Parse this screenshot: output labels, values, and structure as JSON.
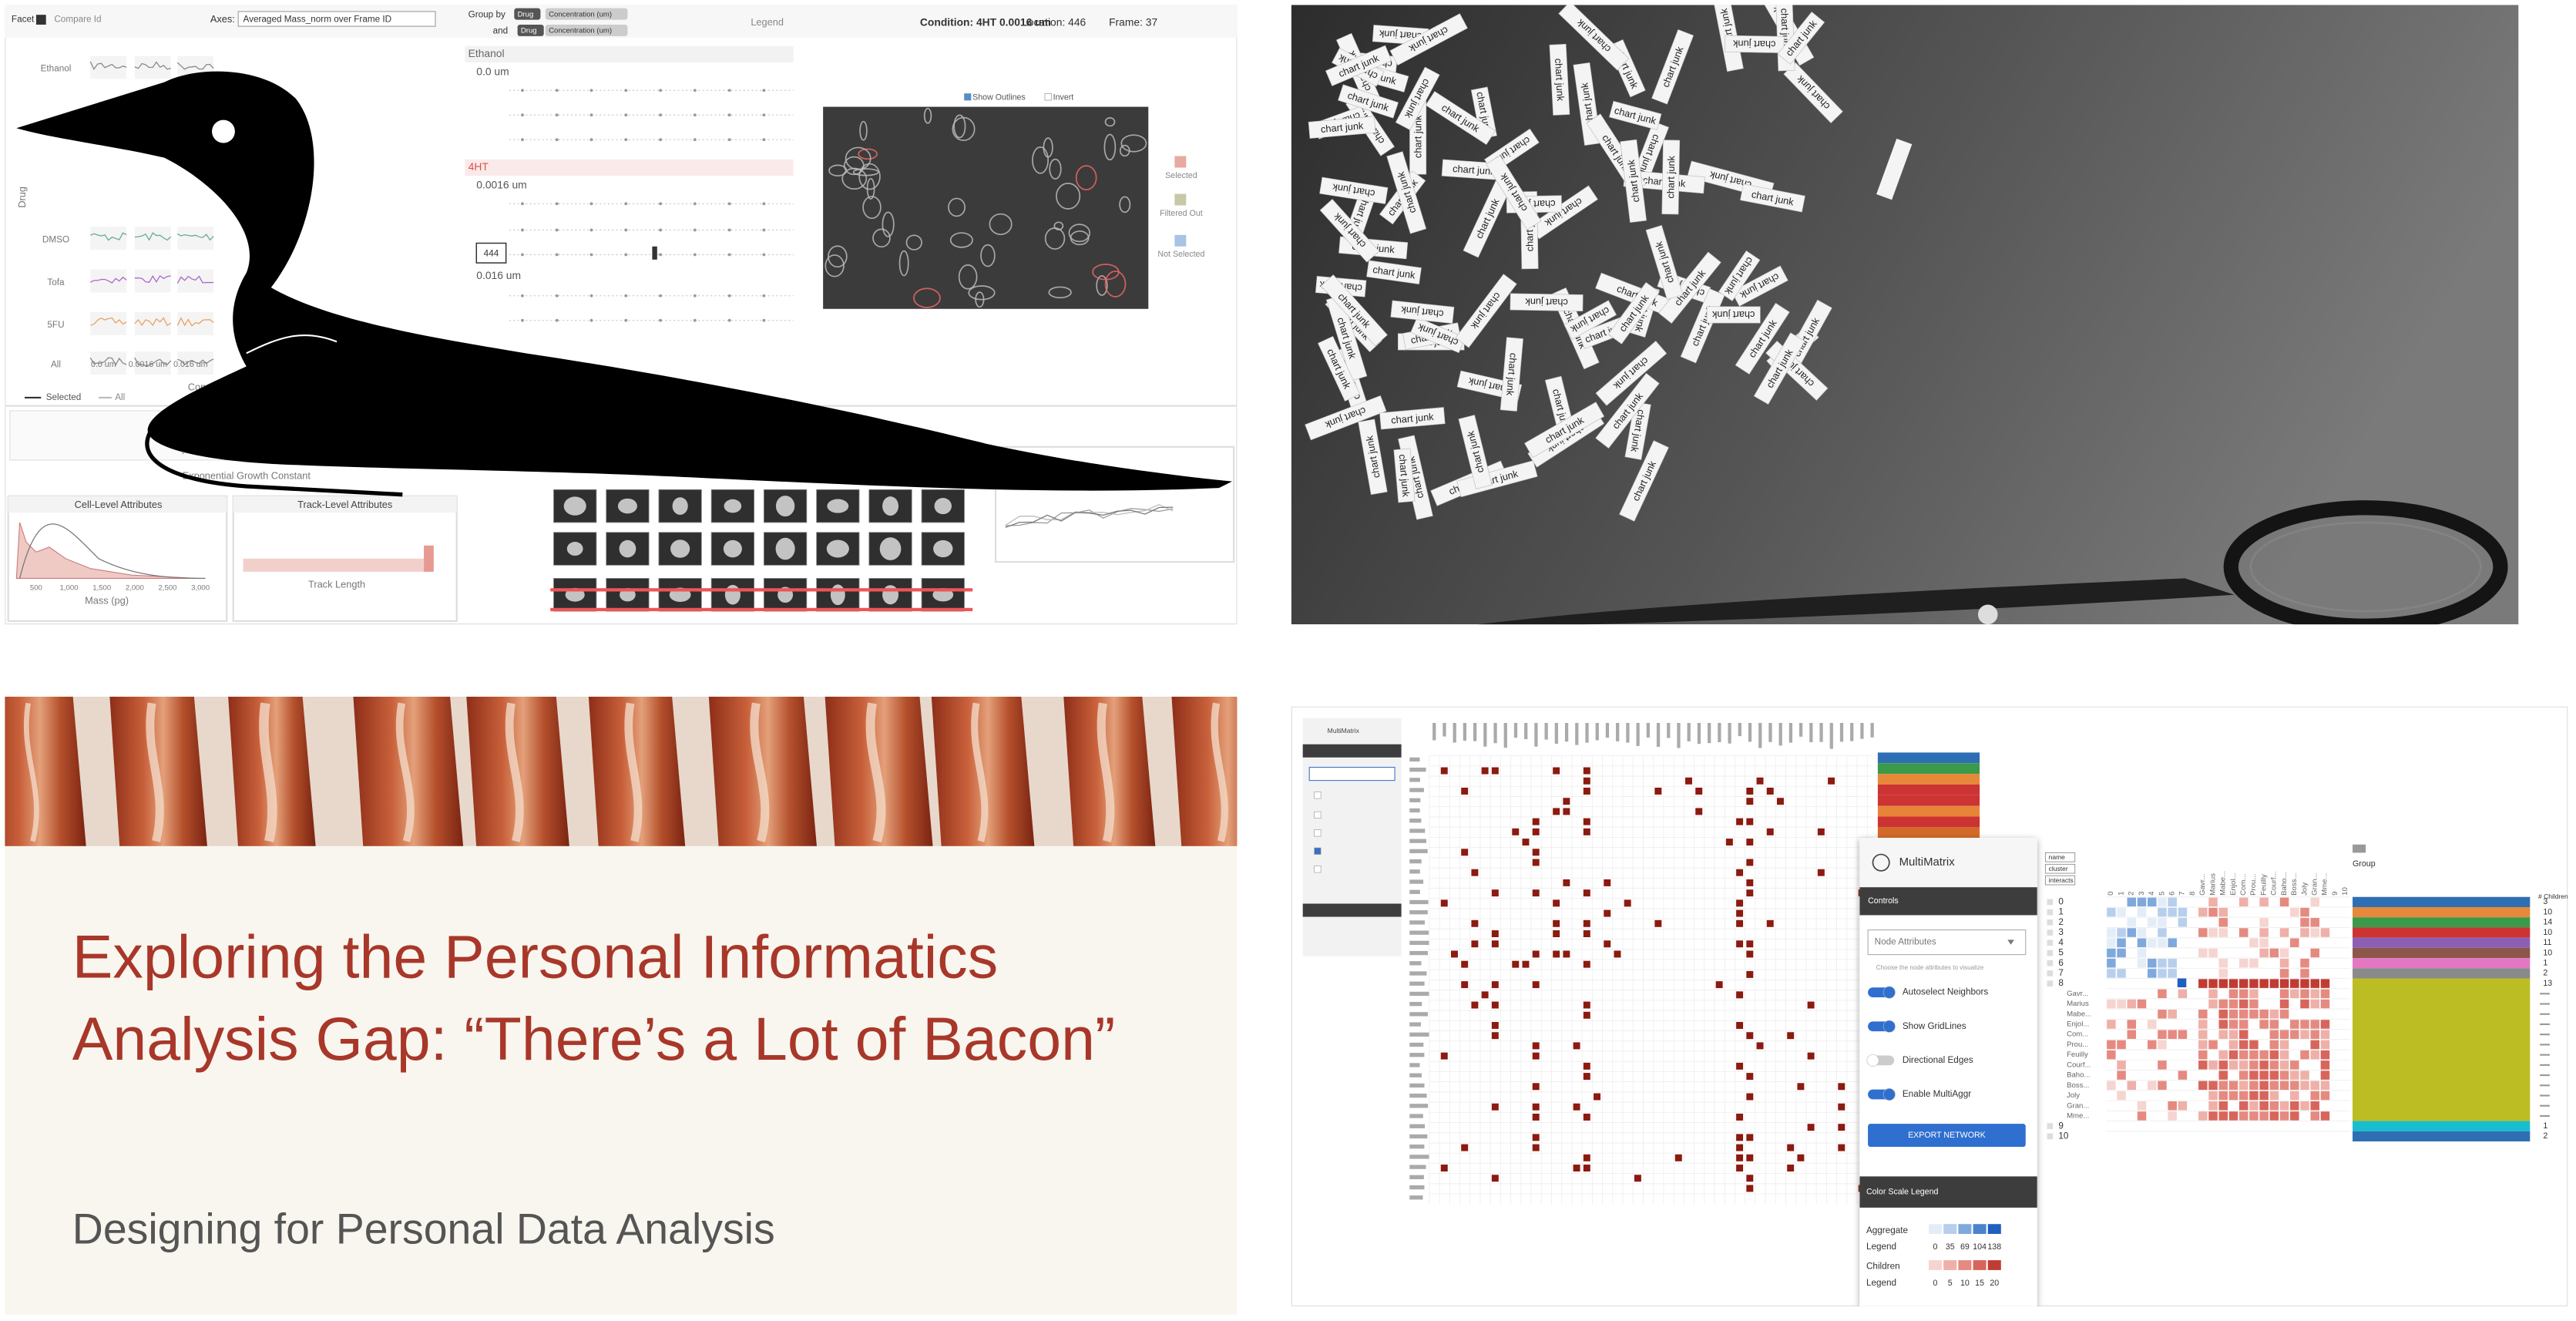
{
  "top_left": {
    "facet": "Facet",
    "compare": "Compare Id",
    "axes_label": "Axes:",
    "axes_value": "Averaged Mass_norm over Frame ID",
    "group_by": "Group by",
    "and": "and",
    "group_chips": [
      "Drug",
      "Concentration (um)"
    ],
    "legend": "Legend",
    "condition": "Condition: 4HT 0.0016 um",
    "location": "Location: 446",
    "frame": "Frame: 37",
    "drugs": [
      "Ethanol",
      "DMSO",
      "Tofa",
      "5FU",
      "All"
    ],
    "y_axis": "Drug",
    "x_axis": "Concentration (um)",
    "concentration_ticks": [
      "0.0 um",
      "0.0016 um",
      "0.016 um"
    ],
    "series_legend": [
      "Selected",
      "All"
    ],
    "conditions": [
      {
        "drug": "Ethanol",
        "doses": [
          "0.0 um"
        ]
      },
      {
        "drug": "4HT",
        "doses": [
          "0.0016 um",
          "0.016 um"
        ]
      }
    ],
    "well_id": "444",
    "image_options": [
      "Show Outlines",
      "Invert"
    ],
    "image_legend": [
      "Selected",
      "Filtered Out",
      "Not Selected"
    ],
    "histogram_axis": "Exponential Growth Constant",
    "cell_panel": "Cell-Level Attributes",
    "track_panel": "Track-Level Attributes",
    "mass_axis": "Mass (pg)",
    "mass_ticks": [
      "500",
      "1,000",
      "1,500",
      "2,000",
      "2,500",
      "3,000"
    ],
    "track_axis": "Track Length"
  },
  "top_right": {
    "strip_text": "chart junk"
  },
  "bottom_left": {
    "title": "Exploring the Personal Informatics Analysis Gap: “There’s a Lot of Bacon”",
    "subtitle": "Designing for Personal Data Analysis"
  },
  "bottom_right": {
    "app": "MultiMatrix",
    "controls": "Controls",
    "node_attributes": "Node Attributes",
    "node_hint": "Choose the node attributes to visualize",
    "toggles": [
      "Autoselect Neighbors",
      "Show GridLines",
      "Directional Edges",
      "Enable MultiAggr"
    ],
    "toggle_states": [
      true,
      true,
      false,
      true
    ],
    "export": "EXPORT NETWORK",
    "color_scale": "Color Scale Legend",
    "aggregate": "Aggregate",
    "children": "Children",
    "legend": "Legend",
    "aggregate_ticks": [
      0,
      35,
      69,
      104,
      138
    ],
    "children_ticks": [
      0,
      5,
      10,
      15,
      20
    ],
    "attribute_buttons": [
      "name",
      "cluster",
      "interacts"
    ],
    "group": "Group",
    "children_header": "# Children",
    "clusters": [
      0,
      1,
      2,
      3,
      4,
      5,
      6,
      7,
      8,
      9,
      10
    ],
    "cluster_children": [
      3,
      10,
      14,
      10,
      11,
      10,
      1,
      2,
      13,
      1,
      2
    ],
    "cluster_8_members": [
      "Gavr...",
      "Marius",
      "Mabe...",
      "Enjol...",
      "Com...",
      "Prou...",
      "Feuilly",
      "Courf...",
      "Baho...",
      "Boss...",
      "Joly",
      "Gran...",
      "Mme..."
    ]
  }
}
